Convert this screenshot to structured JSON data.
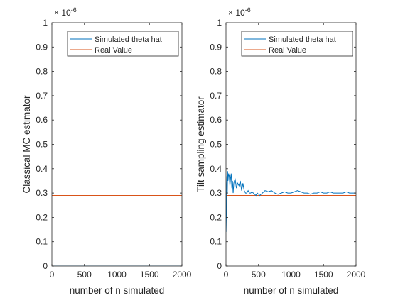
{
  "chart_data": [
    {
      "type": "line",
      "ylabel": "Classical MC estimator",
      "xlabel": "number of n simulated",
      "exponent_label": "× 10",
      "exponent_power": "-6",
      "xlim": [
        0,
        2000
      ],
      "ylim": [
        0,
        1
      ],
      "x_ticks": [
        "0",
        "500",
        "1000",
        "1500",
        "2000"
      ],
      "y_ticks": [
        "0",
        "0.1",
        "0.2",
        "0.3",
        "0.4",
        "0.5",
        "0.6",
        "0.7",
        "0.8",
        "0.9",
        "1"
      ],
      "legend_placement": "top-right",
      "grid": false,
      "series": [
        {
          "name": "Simulated theta hat",
          "color": "#0072BD",
          "x": [
            1,
            2000
          ],
          "y": [
            0,
            0
          ]
        },
        {
          "name": "Real Value",
          "color": "#D95319",
          "x": [
            0,
            2000
          ],
          "y": [
            0.29,
            0.29
          ]
        }
      ]
    },
    {
      "type": "line",
      "ylabel": "Tilt sampling estimator",
      "xlabel": "number of n simulated",
      "exponent_label": "× 10",
      "exponent_power": "-6",
      "xlim": [
        0,
        2000
      ],
      "ylim": [
        0,
        1
      ],
      "x_ticks": [
        "0",
        "500",
        "1000",
        "1500",
        "2000"
      ],
      "y_ticks": [
        "0",
        "0.1",
        "0.2",
        "0.3",
        "0.4",
        "0.5",
        "0.6",
        "0.7",
        "0.8",
        "0.9",
        "1"
      ],
      "legend_placement": "top-right",
      "grid": false,
      "series": [
        {
          "name": "Simulated theta hat",
          "color": "#0072BD",
          "x": [
            1,
            5,
            10,
            15,
            20,
            25,
            30,
            40,
            50,
            60,
            70,
            80,
            90,
            100,
            110,
            120,
            140,
            160,
            180,
            200,
            220,
            240,
            260,
            280,
            300,
            320,
            340,
            360,
            380,
            400,
            420,
            440,
            460,
            480,
            500,
            520,
            540,
            560,
            580,
            600,
            650,
            700,
            750,
            800,
            850,
            900,
            950,
            1000,
            1050,
            1100,
            1150,
            1200,
            1250,
            1300,
            1350,
            1400,
            1450,
            1500,
            1550,
            1600,
            1650,
            1700,
            1750,
            1800,
            1850,
            1900,
            1950,
            2000
          ],
          "y": [
            0.14,
            0.2,
            0.33,
            0.37,
            0.3,
            0.39,
            0.35,
            0.38,
            0.37,
            0.33,
            0.36,
            0.38,
            0.32,
            0.35,
            0.3,
            0.34,
            0.36,
            0.32,
            0.34,
            0.33,
            0.35,
            0.31,
            0.34,
            0.31,
            0.3,
            0.3,
            0.31,
            0.3,
            0.3,
            0.305,
            0.3,
            0.295,
            0.29,
            0.3,
            0.295,
            0.29,
            0.295,
            0.3,
            0.305,
            0.31,
            0.305,
            0.31,
            0.3,
            0.295,
            0.3,
            0.305,
            0.3,
            0.3,
            0.305,
            0.31,
            0.305,
            0.3,
            0.3,
            0.295,
            0.3,
            0.3,
            0.305,
            0.3,
            0.3,
            0.305,
            0.3,
            0.3,
            0.3,
            0.3,
            0.305,
            0.3,
            0.3,
            0.3
          ]
        },
        {
          "name": "Real Value",
          "color": "#D95319",
          "x": [
            0,
            2000
          ],
          "y": [
            0.29,
            0.29
          ]
        }
      ]
    }
  ]
}
